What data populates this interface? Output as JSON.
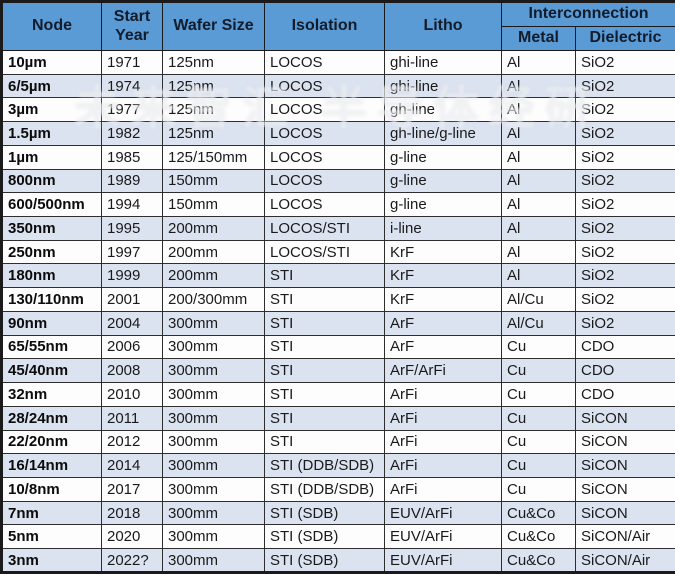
{
  "colors": {
    "header_bg": "#5b9bd5",
    "stripe_bg": "#dce3f0",
    "white_bg": "#fdfdfd",
    "border": "#2e2e2e",
    "outer_border": "#1a1a1a",
    "header_text": "#121c2b",
    "cell_text": "#1a1a1a"
  },
  "watermark": {
    "text": "未来智汇 半导体经研"
  },
  "table": {
    "header": {
      "node": "Node",
      "start_year": "Start Year",
      "wafer_size": "Wafer Size",
      "isolation": "Isolation",
      "litho": "Litho",
      "interconnection": "Interconnection",
      "metal": "Metal",
      "dielectric": "Dielectric"
    },
    "columns": [
      "Node",
      "Start Year",
      "Wafer Size",
      "Isolation",
      "Litho",
      "Metal",
      "Dielectric"
    ],
    "rows": [
      [
        "10µm",
        "1971",
        "125nm",
        "LOCOS",
        "ghi-line",
        "Al",
        "SiO2"
      ],
      [
        "6/5µm",
        "1974",
        "125nm",
        "LOCOS",
        "ghi-line",
        "Al",
        "SiO2"
      ],
      [
        "3µm",
        "1977",
        "125nm",
        "LOCOS",
        "gh-line",
        "Al",
        "SiO2"
      ],
      [
        "1.5µm",
        "1982",
        "125nm",
        "LOCOS",
        "gh-line/g-line",
        "Al",
        "SiO2"
      ],
      [
        "1µm",
        "1985",
        "125/150mm",
        "LOCOS",
        "g-line",
        "Al",
        "SiO2"
      ],
      [
        "800nm",
        "1989",
        "150mm",
        "LOCOS",
        "g-line",
        "Al",
        "SiO2"
      ],
      [
        "600/500nm",
        "1994",
        "150mm",
        "LOCOS",
        "g-line",
        "Al",
        "SiO2"
      ],
      [
        "350nm",
        "1995",
        "200mm",
        "LOCOS/STI",
        "i-line",
        "Al",
        "SiO2"
      ],
      [
        "250nm",
        "1997",
        "200mm",
        "LOCOS/STI",
        "KrF",
        "Al",
        "SiO2"
      ],
      [
        "180nm",
        "1999",
        "200mm",
        "STI",
        "KrF",
        "Al",
        "SiO2"
      ],
      [
        "130/110nm",
        "2001",
        "200/300mm",
        "STI",
        "KrF",
        "Al/Cu",
        "SiO2"
      ],
      [
        "90nm",
        "2004",
        "300mm",
        "STI",
        "ArF",
        "Al/Cu",
        "SiO2"
      ],
      [
        "65/55nm",
        "2006",
        "300mm",
        "STI",
        "ArF",
        "Cu",
        "CDO"
      ],
      [
        "45/40nm",
        "2008",
        "300mm",
        "STI",
        "ArF/ArFi",
        "Cu",
        "CDO"
      ],
      [
        "32nm",
        "2010",
        "300mm",
        "STI",
        "ArFi",
        "Cu",
        "CDO"
      ],
      [
        "28/24nm",
        "2011",
        "300mm",
        "STI",
        "ArFi",
        "Cu",
        "SiCON"
      ],
      [
        "22/20nm",
        "2012",
        "300mm",
        "STI",
        "ArFi",
        "Cu",
        "SiCON"
      ],
      [
        "16/14nm",
        "2014",
        "300mm",
        "STI (DDB/SDB)",
        "ArFi",
        "Cu",
        "SiCON"
      ],
      [
        "10/8nm",
        "2017",
        "300mm",
        "STI (DDB/SDB)",
        "ArFi",
        "Cu",
        "SiCON"
      ],
      [
        "7nm",
        "2018",
        "300mm",
        "STI (SDB)",
        "EUV/ArFi",
        "Cu&Co",
        "SiCON"
      ],
      [
        "5nm",
        "2020",
        "300mm",
        "STI (SDB)",
        "EUV/ArFi",
        "Cu&Co",
        "SiCON/Air"
      ],
      [
        "3nm",
        "2022?",
        "300mm",
        "STI (SDB)",
        "EUV/ArFi",
        "Cu&Co",
        "SiCON/Air"
      ]
    ]
  }
}
